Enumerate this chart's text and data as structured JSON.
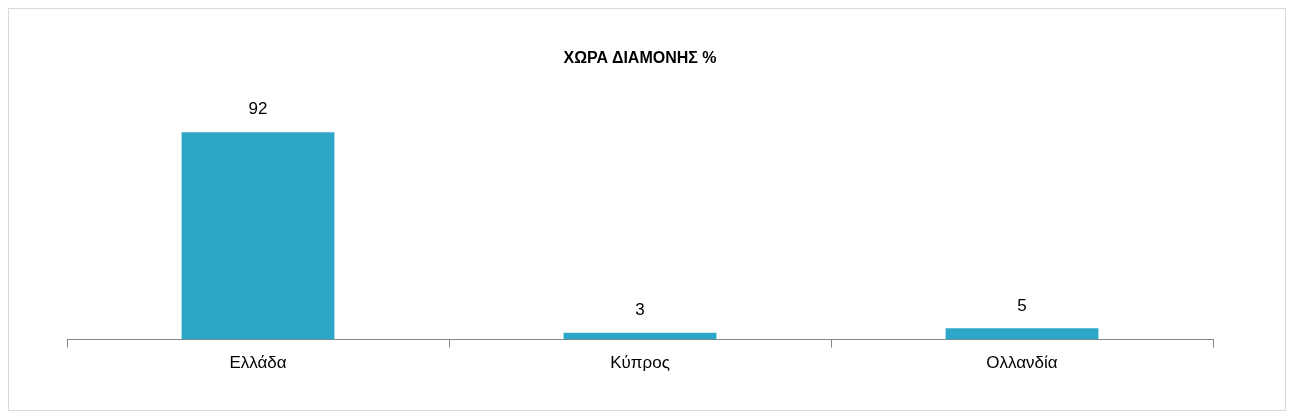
{
  "chart_data": {
    "type": "bar",
    "title": "ΧΩΡΑ ΔΙΑΜΟΝΗΣ %",
    "categories": [
      "Ελλάδα",
      "Κύπρος",
      "Ολλανδία"
    ],
    "values": [
      92,
      3,
      5
    ],
    "color": "#2ea6c8",
    "data_labels": true,
    "grid": false,
    "legend": false
  }
}
